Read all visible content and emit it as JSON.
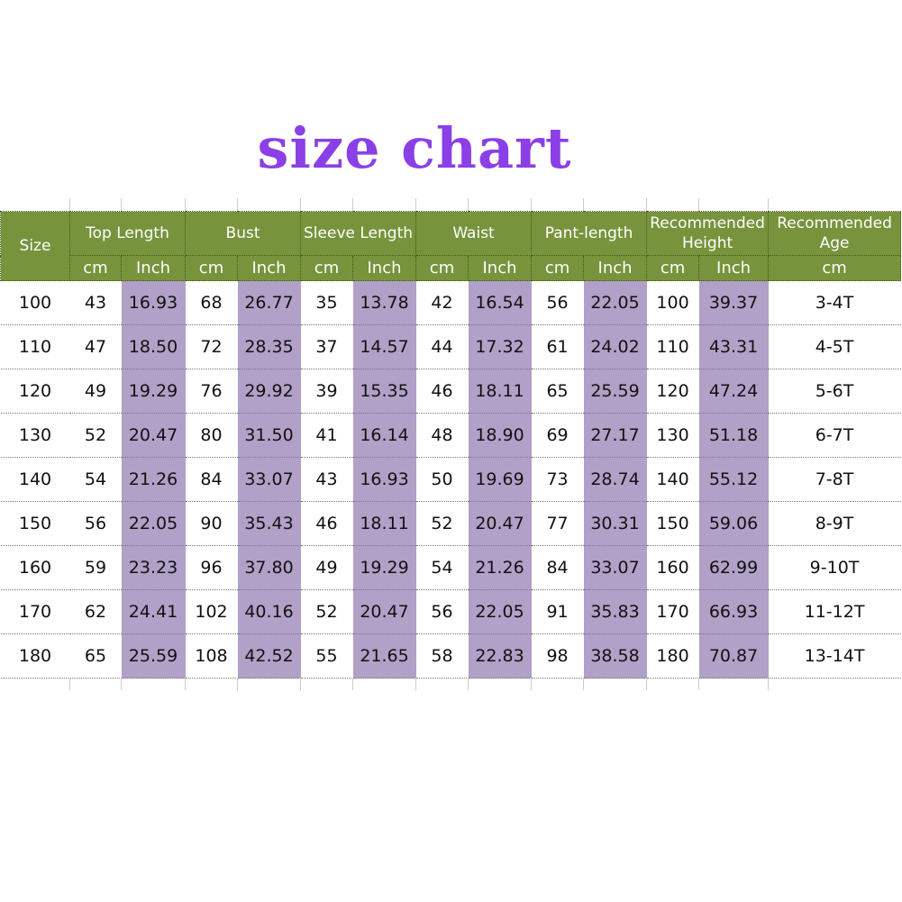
{
  "title": "size chart",
  "headers": [
    "Size",
    "Top Length",
    "Bust",
    "Sleeve Length",
    "Waist",
    "Pant-length",
    "Recommended Height",
    "Recommended Age"
  ],
  "subheaders": [
    "cm",
    "Inch",
    "cm",
    "Inch",
    "cm",
    "Inch",
    "cm",
    "Inch",
    "cm",
    "Inch",
    "cm",
    "Inch",
    "cm"
  ],
  "colors": {
    "header": "#77933c",
    "inch_column": "#b1a0c7",
    "title": "#8b3fe6"
  },
  "rows": [
    [
      "100",
      "43",
      "16.93",
      "68",
      "26.77",
      "35",
      "13.78",
      "42",
      "16.54",
      "56",
      "22.05",
      "100",
      "39.37",
      "3-4T"
    ],
    [
      "110",
      "47",
      "18.50",
      "72",
      "28.35",
      "37",
      "14.57",
      "44",
      "17.32",
      "61",
      "24.02",
      "110",
      "43.31",
      "4-5T"
    ],
    [
      "120",
      "49",
      "19.29",
      "76",
      "29.92",
      "39",
      "15.35",
      "46",
      "18.11",
      "65",
      "25.59",
      "120",
      "47.24",
      "5-6T"
    ],
    [
      "130",
      "52",
      "20.47",
      "80",
      "31.50",
      "41",
      "16.14",
      "48",
      "18.90",
      "69",
      "27.17",
      "130",
      "51.18",
      "6-7T"
    ],
    [
      "140",
      "54",
      "21.26",
      "84",
      "33.07",
      "43",
      "16.93",
      "50",
      "19.69",
      "73",
      "28.74",
      "140",
      "55.12",
      "7-8T"
    ],
    [
      "150",
      "56",
      "22.05",
      "90",
      "35.43",
      "46",
      "18.11",
      "52",
      "20.47",
      "77",
      "30.31",
      "150",
      "59.06",
      "8-9T"
    ],
    [
      "160",
      "59",
      "23.23",
      "96",
      "37.80",
      "49",
      "19.29",
      "54",
      "21.26",
      "84",
      "33.07",
      "160",
      "62.99",
      "9-10T"
    ],
    [
      "170",
      "62",
      "24.41",
      "102",
      "40.16",
      "52",
      "20.47",
      "56",
      "22.05",
      "91",
      "35.83",
      "170",
      "66.93",
      "11-12T"
    ],
    [
      "180",
      "65",
      "25.59",
      "108",
      "42.52",
      "55",
      "21.65",
      "58",
      "22.83",
      "98",
      "38.58",
      "180",
      "70.87",
      "13-14T"
    ]
  ]
}
